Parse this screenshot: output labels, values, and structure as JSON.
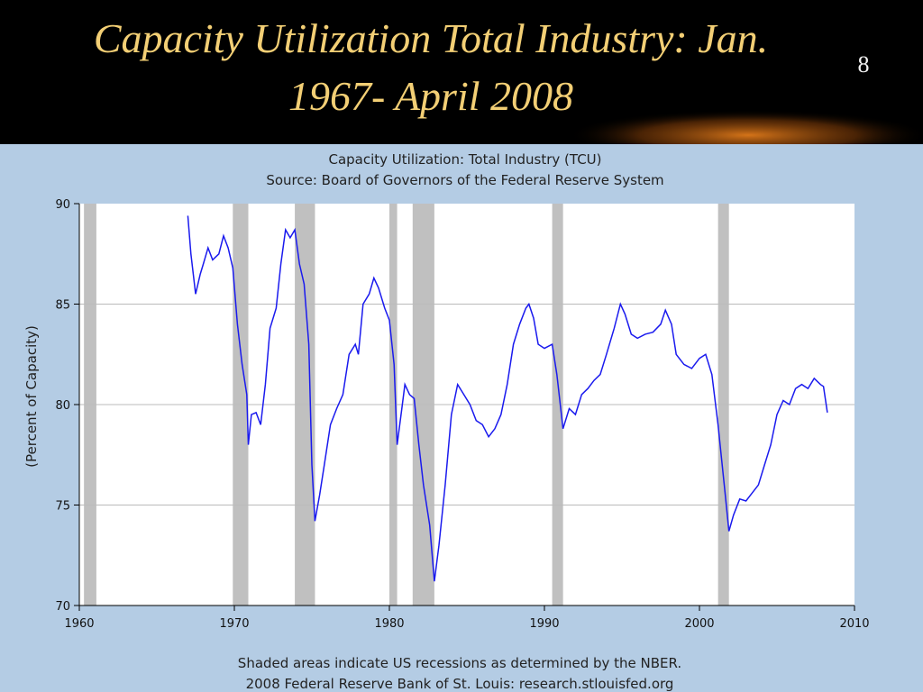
{
  "slide": {
    "title_lines": [
      "Capacity Utilization Total Industry: Jan.",
      "1967- April 2008"
    ],
    "number": "8"
  },
  "chart_data": {
    "type": "line",
    "title": "Capacity Utilization: Total Industry (TCU)",
    "subtitle": "Source: Board of Governors of the Federal Reserve System",
    "y_label": "(Percent of Capacity)",
    "notes": [
      "Shaded areas indicate US recessions as determined by the NBER.",
      "2008 Federal Reserve Bank of St. Louis: research.stlouisfed.org"
    ],
    "xlim": [
      1960,
      2010
    ],
    "ylim": [
      70,
      90
    ],
    "xticks": [
      1960,
      1970,
      1980,
      1990,
      2000,
      2010
    ],
    "yticks": [
      70,
      75,
      80,
      85,
      90
    ],
    "grid": true,
    "recessions": [
      [
        1960.3,
        1961.1
      ],
      [
        1969.9,
        1970.9
      ],
      [
        1973.9,
        1975.2
      ],
      [
        1980.0,
        1980.5
      ],
      [
        1981.5,
        1982.9
      ],
      [
        1990.5,
        1991.2
      ],
      [
        2001.2,
        2001.9
      ]
    ],
    "recession_color": "#c0c0c0",
    "x": [
      1967.0,
      1967.2,
      1967.5,
      1967.8,
      1968.0,
      1968.3,
      1968.6,
      1969.0,
      1969.3,
      1969.6,
      1969.9,
      1970.2,
      1970.5,
      1970.8,
      1970.9,
      1971.1,
      1971.4,
      1971.7,
      1972.0,
      1972.3,
      1972.7,
      1973.0,
      1973.3,
      1973.6,
      1973.9,
      1974.2,
      1974.5,
      1974.8,
      1975.0,
      1975.2,
      1975.5,
      1975.8,
      1976.2,
      1976.6,
      1977.0,
      1977.4,
      1977.8,
      1978.0,
      1978.3,
      1978.7,
      1979.0,
      1979.3,
      1979.7,
      1980.0,
      1980.3,
      1980.5,
      1980.8,
      1981.0,
      1981.3,
      1981.6,
      1981.9,
      1982.2,
      1982.6,
      1982.9,
      1983.2,
      1983.6,
      1984.0,
      1984.4,
      1984.8,
      1985.2,
      1985.6,
      1986.0,
      1986.4,
      1986.8,
      1987.2,
      1987.6,
      1988.0,
      1988.4,
      1988.8,
      1989.0,
      1989.3,
      1989.6,
      1990.0,
      1990.5,
      1990.8,
      1991.2,
      1991.6,
      1992.0,
      1992.4,
      1992.8,
      1993.2,
      1993.6,
      1994.0,
      1994.5,
      1994.9,
      1995.2,
      1995.6,
      1996.0,
      1996.5,
      1997.0,
      1997.5,
      1997.8,
      1998.2,
      1998.5,
      1999.0,
      1999.5,
      2000.0,
      2000.4,
      2000.8,
      2001.2,
      2001.6,
      2001.9,
      2002.2,
      2002.6,
      2003.0,
      2003.4,
      2003.8,
      2004.2,
      2004.6,
      2005.0,
      2005.4,
      2005.8,
      2006.2,
      2006.6,
      2007.0,
      2007.4,
      2007.8,
      2008.0,
      2008.25
    ],
    "series": [
      {
        "name": "TCU",
        "color": "#1a1aee",
        "values": [
          89.4,
          87.5,
          85.5,
          86.5,
          87.0,
          87.8,
          87.2,
          87.5,
          88.4,
          87.8,
          86.8,
          84.0,
          82.0,
          80.5,
          78.0,
          79.5,
          79.6,
          79.0,
          81.0,
          83.8,
          84.8,
          87.0,
          88.7,
          88.3,
          88.7,
          87.0,
          86.0,
          83.0,
          77.0,
          74.2,
          75.5,
          77.0,
          79.0,
          79.8,
          80.5,
          82.5,
          83.0,
          82.5,
          85.0,
          85.5,
          86.3,
          85.8,
          84.8,
          84.2,
          82.0,
          78.0,
          79.8,
          81.0,
          80.5,
          80.3,
          78.0,
          76.0,
          74.0,
          71.2,
          73.0,
          76.0,
          79.5,
          81.0,
          80.5,
          80.0,
          79.2,
          79.0,
          78.4,
          78.8,
          79.5,
          81.0,
          83.0,
          84.0,
          84.8,
          85.0,
          84.3,
          83.0,
          82.8,
          83.0,
          81.5,
          78.8,
          79.8,
          79.5,
          80.5,
          80.8,
          81.2,
          81.5,
          82.5,
          83.8,
          85.0,
          84.5,
          83.5,
          83.3,
          83.5,
          83.6,
          84.0,
          84.7,
          84.0,
          82.5,
          82.0,
          81.8,
          82.3,
          82.5,
          81.5,
          79.0,
          76.0,
          73.7,
          74.5,
          75.3,
          75.2,
          75.6,
          76.0,
          77.0,
          78.0,
          79.5,
          80.2,
          80.0,
          80.8,
          81.0,
          80.8,
          81.3,
          81.0,
          80.9,
          79.6
        ]
      }
    ]
  }
}
